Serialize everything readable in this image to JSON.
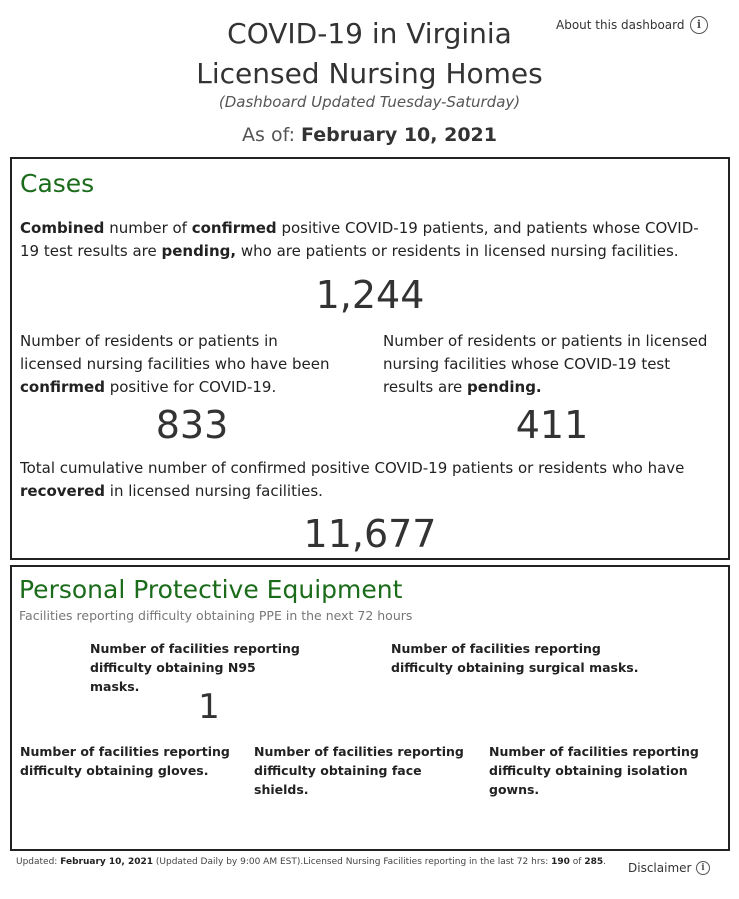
{
  "header": {
    "title_line1": "COVID-19 in Virginia",
    "title_line2": "Licensed Nursing Homes",
    "subtitle": "(Dashboard Updated Tuesday-Saturday)",
    "as_of_label": "As of:",
    "as_of_date": "February 10, 2021",
    "about_link": "About this dashboard",
    "about_icon": "info-icon"
  },
  "cases": {
    "title": "Cases",
    "combined_desc": {
      "t1": "Combined",
      "t2": " number of ",
      "t3": "confirmed",
      "t4": " positive COVID-19 patients, and patients whose COVID-19 test results are ",
      "t5": "pending,",
      "t6": " who are patients or residents in licensed nursing facilities."
    },
    "combined_value": "1,244",
    "confirmed_desc": {
      "t1": "Number of residents or patients in licensed nursing facilities who have been ",
      "t2": "confirmed",
      "t3": " positive for COVID-19."
    },
    "confirmed_value": "833",
    "pending_desc": {
      "t1": "Number of residents or patients in licensed nursing facilities whose COVID-19 test results are ",
      "t2": "pending."
    },
    "pending_value": "411",
    "recovered_desc": {
      "t1": "Total cumulative number of confirmed positive COVID-19 patients or residents who have ",
      "t2": "recovered",
      "t3": " in licensed nursing facilities."
    },
    "recovered_value": "11,677"
  },
  "ppe": {
    "title": "Personal Protective Equipment",
    "subtitle": "Facilities reporting difficulty obtaining PPE in the next 72 hours",
    "n95_label": "Number of facilities reporting difficulty obtaining N95 masks.",
    "n95_value": "1",
    "surgical_label": "Number of facilities reporting difficulty obtaining surgical masks.",
    "gloves_label": "Number of facilities reporting difficulty obtaining gloves.",
    "face_shields_label": "Number of facilities reporting difficulty obtaining face shields.",
    "gowns_label": "Number of facilities reporting difficulty obtaining isolation gowns."
  },
  "footer": {
    "updated_label": "Updated: ",
    "updated_date": "February 10, 2021",
    "updated_note": " (Updated Daily by 9:00 AM EST).Licensed Nursing Facilities reporting in the last 72 hrs: ",
    "reporting_count": "190",
    "of_text": " of ",
    "total_count": "285",
    "period": ".",
    "disclaimer_label": "Disclaimer",
    "disclaimer_icon": "info-icon"
  },
  "colors": {
    "section_title": "#1a6b1a",
    "panel_border": "#222222",
    "text": "#333333"
  }
}
